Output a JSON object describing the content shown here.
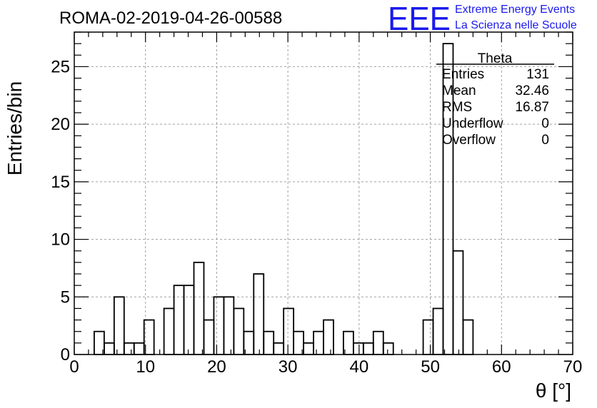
{
  "chart_data": {
    "type": "bar",
    "title": "ROMA-02-2019-04-26-00588",
    "xlabel": "θ [°]",
    "ylabel": "Entries/bin",
    "xlim": [
      0,
      70
    ],
    "ylim": [
      0,
      28
    ],
    "xticks": [
      0,
      10,
      20,
      30,
      40,
      50,
      60,
      70
    ],
    "yticks": [
      0,
      5,
      10,
      15,
      20,
      25
    ],
    "grid": true,
    "bin_width": 1.4,
    "bin_starts": [
      2.8,
      4.2,
      5.6,
      7.0,
      8.4,
      9.8,
      11.2,
      12.6,
      14.0,
      15.4,
      16.8,
      18.2,
      19.6,
      21.0,
      22.4,
      23.8,
      25.2,
      26.6,
      28.0,
      29.4,
      30.8,
      32.2,
      33.6,
      35.0,
      36.4,
      37.8,
      39.2,
      40.6,
      42.0,
      43.4,
      44.8,
      46.2,
      47.6,
      49.0,
      50.4,
      51.8,
      53.2,
      54.6
    ],
    "values": [
      2,
      1,
      5,
      1,
      1,
      3,
      0,
      4,
      6,
      6,
      8,
      3,
      5,
      5,
      4,
      2,
      7,
      2,
      1,
      4,
      2,
      1,
      2,
      3,
      0,
      2,
      1,
      1,
      2,
      1,
      0,
      0,
      0,
      3,
      4,
      27,
      9,
      3
    ]
  },
  "stats_box": {
    "title": "Theta",
    "rows": [
      {
        "label": "Entries",
        "value": "131"
      },
      {
        "label": "Mean",
        "value": "32.46"
      },
      {
        "label": "RMS",
        "value": "16.87"
      },
      {
        "label": "Underflow",
        "value": "0"
      },
      {
        "label": "Overflow",
        "value": "0"
      }
    ]
  },
  "logo": {
    "mark": "EEE",
    "line1": "Extreme Energy Events",
    "line2": "La Scienza nelle Scuole",
    "color": "#1a1aee"
  }
}
